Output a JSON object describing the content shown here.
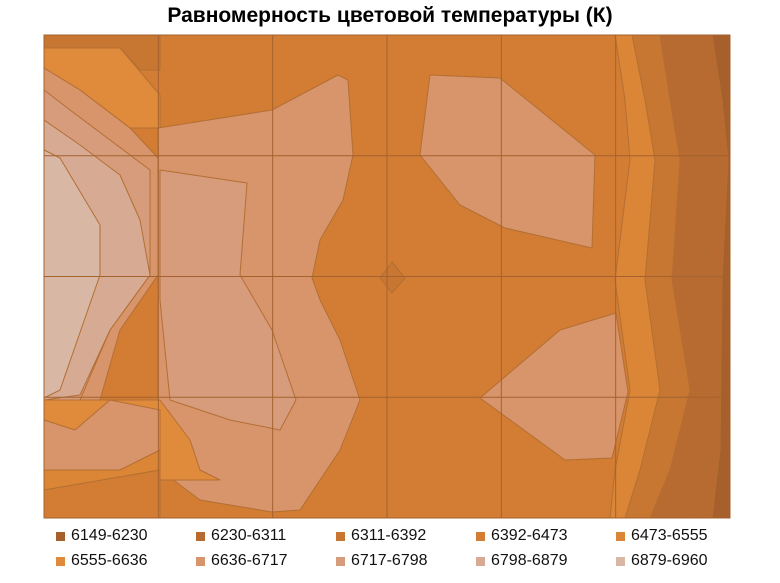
{
  "chart_data": {
    "type": "contour",
    "title": "Равномерность цветовой температуры (К)",
    "grid": true,
    "columns": 6,
    "rows": 4,
    "levels": [
      {
        "label": "6149-6230",
        "min": 6149,
        "max": 6230,
        "color": "#a75f2c"
      },
      {
        "label": "6230-6311",
        "min": 6230,
        "max": 6311,
        "color": "#b86b30"
      },
      {
        "label": "6311-6392",
        "min": 6311,
        "max": 6392,
        "color": "#c77731"
      },
      {
        "label": "6392-6473",
        "min": 6392,
        "max": 6473,
        "color": "#d27d33"
      },
      {
        "label": "6473-6555",
        "min": 6473,
        "max": 6555,
        "color": "#db8537"
      },
      {
        "label": "6555-6636",
        "min": 6555,
        "max": 6636,
        "color": "#e08a3c"
      },
      {
        "label": "6636-6717",
        "min": 6636,
        "max": 6717,
        "color": "#d8946a"
      },
      {
        "label": "6717-6798",
        "min": 6717,
        "max": 6798,
        "color": "#d79c7c"
      },
      {
        "label": "6798-6879",
        "min": 6798,
        "max": 6879,
        "color": "#d6aa93"
      },
      {
        "label": "6879-6960",
        "min": 6879,
        "max": 6960,
        "color": "#d8b8a5"
      }
    ]
  }
}
